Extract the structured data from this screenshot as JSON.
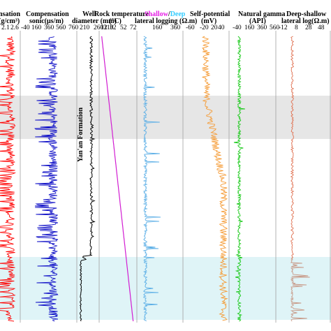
{
  "chart_data": {
    "type": "line",
    "formation_label": "Yan'an Formation",
    "colors": {
      "band_grey": "#e6e6e6",
      "band_cyan": "#dff4f7",
      "density": "#ff0000",
      "sonic": "#1414c8",
      "well": "#000000",
      "temperature": "#d21ed2",
      "shallow_title": "#e61ee6",
      "deep_title": "#33ccff",
      "lateral": "#5aaee6",
      "sp": "#f59a33",
      "gamma": "#14c814",
      "deep_shallow_upper": "#e07050",
      "deep_shallow_lower": "#c89a88"
    },
    "tracks": [
      {
        "key": "density",
        "title_lines": [
          "nsation",
          "(g/cm³)"
        ],
        "ticks": [
          "2.1",
          "2.6"
        ],
        "scale": [
          1.6,
          2.6
        ],
        "typical_range": [
          1.9,
          2.4
        ]
      },
      {
        "key": "sonic",
        "title_lines": [
          "Compensation",
          "sonic(μs/m)"
        ],
        "ticks": [
          "-40",
          "160",
          "360",
          "560",
          "760"
        ],
        "scale": [
          -40,
          760
        ],
        "typical_range": [
          360,
          500
        ]
      },
      {
        "key": "well",
        "title_lines": [
          "Well",
          "diameter (mm)"
        ],
        "ticks": [
          "210",
          "260",
          "310"
        ],
        "scale": [
          210,
          360
        ],
        "typical_range": [
          300,
          320
        ],
        "lower_section_value": 230
      },
      {
        "key": "temperature",
        "title_lines": [
          "Rock temperature",
          "(°C)"
        ],
        "ticks": [
          "12",
          "32",
          "52",
          "72"
        ],
        "scale": [
          12,
          72
        ],
        "top_value": 14,
        "bottom_value": 68
      },
      {
        "key": "lateral",
        "title_shallow": "Shallow",
        "title_sep": "/",
        "title_deep": "Deep",
        "title_line2": "lateral logging (Ω.m)",
        "ticks": [
          "160",
          "360"
        ],
        "scale": [
          -40,
          360
        ],
        "typical_range": [
          10,
          40
        ]
      },
      {
        "key": "sp",
        "title_lines": [
          "Self-potential",
          "(mV)"
        ],
        "ticks": [
          "-60",
          "-20",
          "20",
          "40"
        ],
        "scale": [
          -60,
          40
        ],
        "upper_value": -10,
        "lower_value": 30
      },
      {
        "key": "gamma",
        "title_lines": [
          "Natural gamma",
          "(API)"
        ],
        "ticks": [
          "-40",
          "160",
          "360",
          "560"
        ],
        "scale": [
          -40,
          560
        ],
        "typical_range": [
          60,
          100
        ]
      },
      {
        "key": "deep_shallow",
        "title_lines": [
          "Deep-shallow",
          "lateral log(Ω.m)"
        ],
        "ticks": [
          "-12",
          "8",
          "28",
          "48"
        ],
        "scale": [
          -12,
          48
        ],
        "typical_range": [
          4,
          7
        ]
      }
    ]
  }
}
